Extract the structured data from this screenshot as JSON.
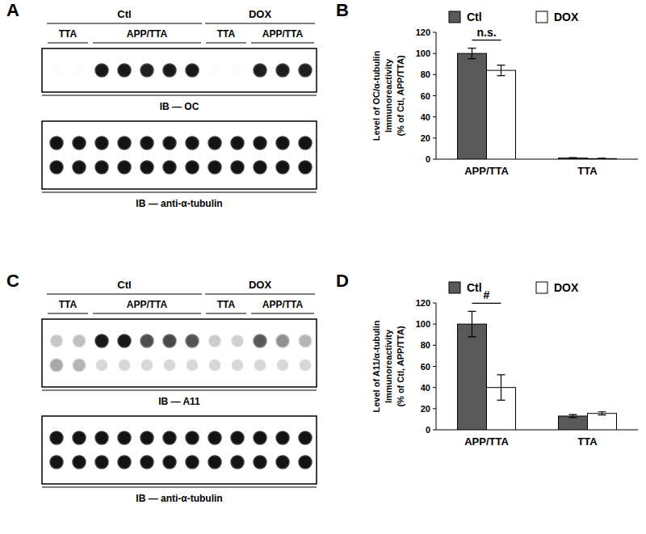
{
  "blots": [
    {
      "panel": "A",
      "groups": [
        {
          "label": "Ctl",
          "from": 0,
          "to": 6
        },
        {
          "label": "DOX",
          "from": 7,
          "to": 11
        }
      ],
      "subgroups": [
        {
          "label": "TTA",
          "from": 0,
          "to": 1
        },
        {
          "label": "APP/TTA",
          "from": 2,
          "to": 6
        },
        {
          "label": "TTA",
          "from": 7,
          "to": 8
        },
        {
          "label": "APP/TTA",
          "from": 9,
          "to": 11
        }
      ],
      "membranes": [
        {
          "label": "IB — OC",
          "dots": [
            [
              0,
              0,
              95,
              95,
              92,
              94,
              95,
              0,
              0,
              93,
              93,
              92
            ]
          ]
        },
        {
          "label": "IB — anti-α-tubulin",
          "dots": [
            [
              97,
              97,
              97,
              97,
              97,
              97,
              97,
              97,
              97,
              97,
              97,
              97
            ],
            [
              97,
              97,
              97,
              97,
              97,
              97,
              97,
              97,
              97,
              97,
              97,
              97
            ]
          ]
        }
      ]
    },
    {
      "panel": "C",
      "groups": [
        {
          "label": "Ctl",
          "from": 0,
          "to": 6
        },
        {
          "label": "DOX",
          "from": 7,
          "to": 11
        }
      ],
      "subgroups": [
        {
          "label": "TTA",
          "from": 0,
          "to": 1
        },
        {
          "label": "APP/TTA",
          "from": 2,
          "to": 6
        },
        {
          "label": "TTA",
          "from": 7,
          "to": 8
        },
        {
          "label": "APP/TTA",
          "from": 9,
          "to": 11
        }
      ],
      "membranes": [
        {
          "label": "IB — A11",
          "dots": [
            [
              22,
              25,
              95,
              95,
              72,
              75,
              70,
              20,
              18,
              68,
              45,
              30
            ],
            [
              35,
              30,
              15,
              15,
              15,
              15,
              15,
              15,
              15,
              15,
              15,
              15
            ]
          ]
        },
        {
          "label": "IB — anti-α-tubulin",
          "dots": [
            [
              97,
              97,
              97,
              97,
              97,
              97,
              97,
              97,
              97,
              97,
              97,
              97
            ],
            [
              97,
              97,
              97,
              97,
              97,
              97,
              97,
              97,
              97,
              97,
              97,
              97
            ]
          ]
        }
      ]
    }
  ],
  "chart_data": [
    {
      "type": "bar",
      "panel": "B",
      "y_label": [
        "Level of OC/α-tubulin",
        "Immunoreactivity",
        "(% of Ctl, APP/TTA)"
      ],
      "categories": [
        "APP/TTA",
        "TTA"
      ],
      "series": [
        {
          "name": "Ctl",
          "color": "#595959",
          "values": [
            100,
            1
          ],
          "errors": [
            5,
            0.4
          ]
        },
        {
          "name": "DOX",
          "color": "#ffffff",
          "values": [
            84,
            0.5
          ],
          "errors": [
            5,
            0.3
          ]
        }
      ],
      "ylim": [
        0,
        120
      ],
      "yticks": [
        0,
        20,
        40,
        60,
        80,
        100,
        120
      ],
      "grid": false,
      "legend": "top",
      "annotations": [
        {
          "text": "n.s.",
          "category": "APP/TTA"
        }
      ]
    },
    {
      "type": "bar",
      "panel": "D",
      "y_label": [
        "Level of A11/α-tubulin",
        "Immunoreactivity",
        "(% of Ctl, APP/TTA)"
      ],
      "categories": [
        "APP/TTA",
        "TTA"
      ],
      "series": [
        {
          "name": "Ctl",
          "color": "#595959",
          "values": [
            100,
            13
          ],
          "errors": [
            12,
            1.5
          ]
        },
        {
          "name": "DOX",
          "color": "#ffffff",
          "values": [
            40,
            15.5
          ],
          "errors": [
            12,
            1.5
          ]
        }
      ],
      "ylim": [
        0,
        120
      ],
      "yticks": [
        0,
        20,
        40,
        60,
        80,
        100,
        120
      ],
      "grid": false,
      "legend": "top",
      "annotations": [
        {
          "text": "#",
          "category": "APP/TTA"
        }
      ]
    }
  ]
}
